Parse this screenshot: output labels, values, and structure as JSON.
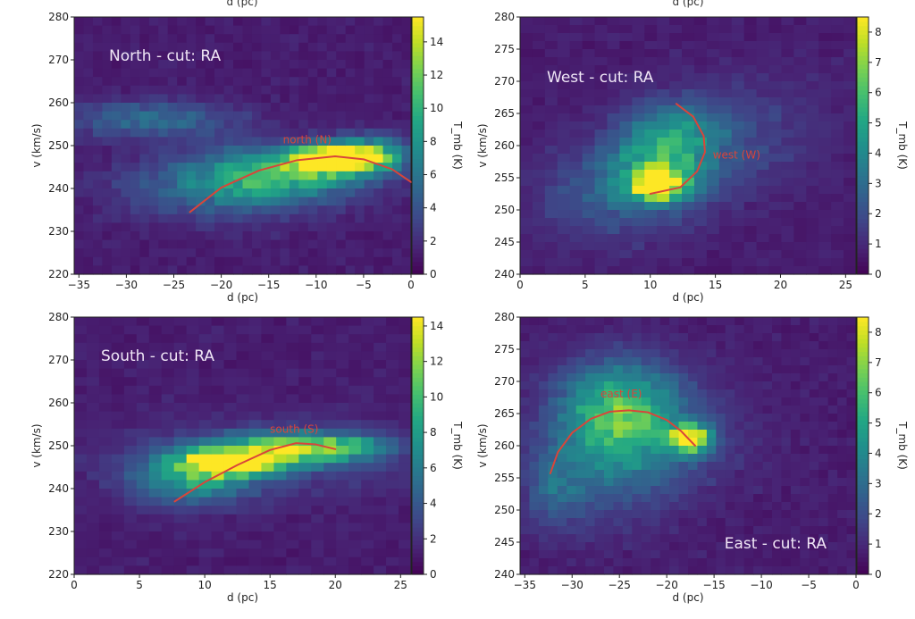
{
  "chart_data": [
    {
      "type": "heatmap",
      "panel_label": "North - cut: RA",
      "xlabel": "d (pc)",
      "ylabel": "v (km/s)",
      "colorbar_label": "T_mb (K)",
      "xlim": [
        -35.5,
        0
      ],
      "ylim": [
        220,
        280
      ],
      "clim": [
        0,
        15.5
      ],
      "xticks": [
        -35,
        -30,
        -25,
        -20,
        -15,
        -10,
        -5,
        0
      ],
      "yticks": [
        220,
        230,
        240,
        250,
        260,
        270,
        280
      ],
      "cticks": [
        0,
        2,
        4,
        6,
        8,
        10,
        12,
        14
      ],
      "colormap": "viridis",
      "curve": {
        "name": "north (N)",
        "color": "#d9453a",
        "x": [
          -23.3,
          -20,
          -16,
          -12,
          -8,
          -5,
          -2,
          0
        ],
        "y": [
          234.5,
          240.2,
          244.2,
          246.6,
          247.5,
          246.8,
          244.5,
          241.5
        ],
        "label_at": [
          -13.5,
          250.5
        ]
      }
    },
    {
      "type": "heatmap",
      "panel_label": "West - cut: RA",
      "xlabel": "d (pc)",
      "ylabel": "v (km/s)",
      "colorbar_label": "T_mb (K)",
      "xlim": [
        0,
        25.8
      ],
      "ylim": [
        240,
        280
      ],
      "clim": [
        0,
        8.5
      ],
      "xticks": [
        0,
        5,
        10,
        15,
        20,
        25
      ],
      "yticks": [
        240,
        245,
        250,
        255,
        260,
        265,
        270,
        275,
        280
      ],
      "cticks": [
        0,
        1,
        2,
        3,
        4,
        5,
        6,
        7,
        8
      ],
      "colormap": "viridis",
      "curve": {
        "name": "west (W)",
        "color": "#d9453a",
        "x": [
          12,
          13.3,
          14.1,
          14.2,
          13.6,
          12.3,
          10
        ],
        "y": [
          266.5,
          264.5,
          261.5,
          259,
          256,
          253.5,
          252.5
        ],
        "label_at": [
          14.8,
          258
        ]
      }
    },
    {
      "type": "heatmap",
      "panel_label": "South - cut: RA",
      "xlabel": "d (pc)",
      "ylabel": "v (km/s)",
      "colorbar_label": "T_mb (K)",
      "xlim": [
        0,
        25.8
      ],
      "ylim": [
        220,
        280
      ],
      "clim": [
        0,
        14.5
      ],
      "xticks": [
        0,
        5,
        10,
        15,
        20,
        25
      ],
      "yticks": [
        220,
        230,
        240,
        250,
        260,
        270,
        280
      ],
      "cticks": [
        0,
        2,
        4,
        6,
        8,
        10,
        12,
        14
      ],
      "colormap": "viridis",
      "curve": {
        "name": "south (S)",
        "color": "#d9453a",
        "x": [
          7.7,
          10,
          12.5,
          15,
          17,
          18.5,
          20
        ],
        "y": [
          237,
          241.5,
          245.5,
          249,
          250.6,
          250.3,
          249.2
        ],
        "label_at": [
          15,
          253
        ]
      }
    },
    {
      "type": "heatmap",
      "panel_label": "East - cut: RA",
      "xlabel": "d (pc)",
      "ylabel": "v (km/s)",
      "colorbar_label": "T_mb (K)",
      "xlim": [
        -35.5,
        0
      ],
      "ylim": [
        240,
        280
      ],
      "clim": [
        0,
        8.5
      ],
      "xticks": [
        -35,
        -30,
        -25,
        -20,
        -15,
        -10,
        -5,
        0
      ],
      "yticks": [
        240,
        245,
        250,
        255,
        260,
        265,
        270,
        275,
        280
      ],
      "cticks": [
        0,
        1,
        2,
        3,
        4,
        5,
        6,
        7,
        8
      ],
      "colormap": "viridis",
      "curve": {
        "name": "east (E)",
        "color": "#d9453a",
        "x": [
          -32.3,
          -31.5,
          -30,
          -28,
          -26,
          -24,
          -22,
          -20,
          -18.5,
          -17
        ],
        "y": [
          255.7,
          259,
          262,
          264.2,
          265.3,
          265.5,
          265.2,
          264,
          262.3,
          260
        ],
        "label_at": [
          -27,
          267.5
        ]
      }
    }
  ]
}
